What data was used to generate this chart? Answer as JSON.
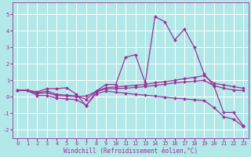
{
  "xlabel": "Windchill (Refroidissement éolien,°C)",
  "bg_color": "#b3e8e8",
  "line_color": "#993399",
  "grid_color": "#ffffff",
  "xlim": [
    -0.5,
    23.5
  ],
  "ylim": [
    -2.5,
    5.7
  ],
  "yticks": [
    -2,
    -1,
    0,
    1,
    2,
    3,
    4,
    5
  ],
  "xticks": [
    0,
    1,
    2,
    3,
    4,
    5,
    6,
    7,
    8,
    9,
    10,
    11,
    12,
    13,
    14,
    15,
    16,
    17,
    18,
    19,
    20,
    21,
    22,
    23
  ],
  "series": [
    [
      0.4,
      0.4,
      0.3,
      0.5,
      0.5,
      0.55,
      0.15,
      -0.55,
      0.35,
      0.75,
      0.75,
      2.4,
      2.55,
      0.85,
      4.85,
      4.55,
      3.45,
      4.1,
      3.0,
      1.4,
      0.65,
      -0.95,
      -0.95,
      -1.75
    ],
    [
      0.4,
      0.4,
      0.25,
      0.35,
      0.15,
      0.1,
      0.05,
      -0.15,
      0.35,
      0.55,
      0.6,
      0.65,
      0.7,
      0.75,
      0.85,
      0.92,
      1.0,
      1.1,
      1.18,
      1.28,
      0.82,
      0.72,
      0.62,
      0.52
    ],
    [
      0.4,
      0.38,
      0.2,
      0.25,
      0.08,
      0.05,
      0.02,
      0.05,
      0.32,
      0.48,
      0.5,
      0.52,
      0.57,
      0.62,
      0.7,
      0.76,
      0.85,
      0.9,
      0.95,
      1.0,
      0.68,
      0.52,
      0.42,
      0.38
    ],
    [
      0.38,
      0.38,
      0.08,
      0.08,
      -0.08,
      -0.12,
      -0.18,
      -0.5,
      0.18,
      0.35,
      0.28,
      0.22,
      0.15,
      0.1,
      0.05,
      -0.02,
      -0.08,
      -0.12,
      -0.18,
      -0.22,
      -0.65,
      -1.2,
      -1.35,
      -1.8
    ]
  ],
  "markersize": 2.0,
  "linewidth": 0.9,
  "tick_fontsize": 5.0,
  "xlabel_fontsize": 5.5,
  "figwidth": 3.2,
  "figheight": 2.0,
  "dpi": 100
}
